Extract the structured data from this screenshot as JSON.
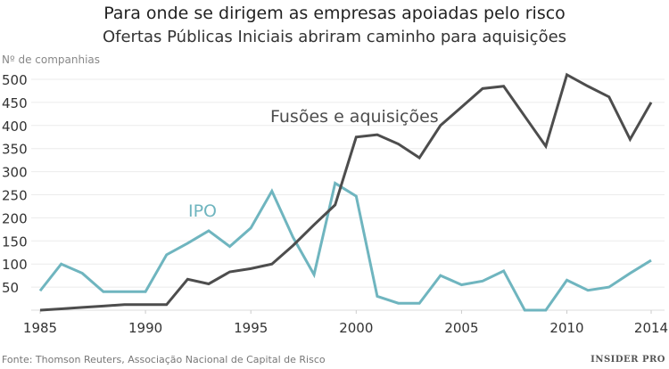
{
  "chart_data": {
    "type": "line",
    "title": "Para onde se dirigem as empresas apoiadas pelo risco",
    "subtitle": "Ofertas Públicas Iniciais abriram caminho para aquisições",
    "ylabel": "Nº de companhias",
    "xlabel": "",
    "ylim": [
      0,
      500
    ],
    "yticks": [
      50,
      100,
      150,
      200,
      250,
      300,
      350,
      400,
      450,
      500
    ],
    "xticks": [
      1985,
      1990,
      1995,
      2000,
      2005,
      2010,
      2014
    ],
    "grid": true,
    "x": [
      1985,
      1986,
      1987,
      1988,
      1989,
      1990,
      1991,
      1992,
      1993,
      1994,
      1995,
      1996,
      1997,
      1998,
      1999,
      2000,
      2001,
      2002,
      2003,
      2004,
      2005,
      2006,
      2007,
      2008,
      2009,
      2010,
      2011,
      2012,
      2013,
      2014
    ],
    "series": [
      {
        "name": "IPO",
        "color": "#6fb5bf",
        "values": [
          42,
          100,
          80,
          40,
          40,
          40,
          120,
          145,
          172,
          138,
          178,
          258,
          158,
          77,
          275,
          247,
          30,
          15,
          15,
          75,
          55,
          63,
          85,
          0,
          0,
          65,
          43,
          50,
          80,
          108
        ]
      },
      {
        "name": "Fusões e aquisições",
        "color": "#4d4d4d",
        "values": [
          0,
          3,
          6,
          9,
          12,
          12,
          12,
          67,
          57,
          83,
          90,
          100,
          140,
          185,
          228,
          375,
          380,
          360,
          330,
          400,
          440,
          480,
          485,
          420,
          355,
          510,
          485,
          462,
          370,
          450
        ]
      }
    ],
    "source": "Fonte: Thomson Reuters, Associação Nacional de Capital de Risco"
  },
  "logo": "INSIDER PRO"
}
